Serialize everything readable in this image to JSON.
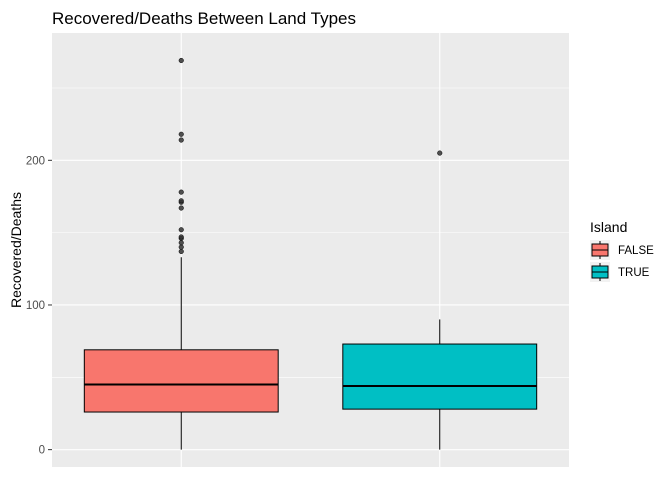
{
  "chart_data": {
    "type": "box",
    "title": "Recovered/Deaths Between Land Types",
    "xlabel": "",
    "ylabel": "Recovered/Deaths",
    "ylim": [
      -12,
      288
    ],
    "yticks": [
      0,
      100,
      200
    ],
    "grid": true,
    "legend": {
      "title": "Island",
      "position": "right"
    },
    "series": [
      {
        "name": "FALSE",
        "color": "#F8766D",
        "min": 0,
        "q1": 26,
        "median": 45,
        "q3": 69,
        "max": 133,
        "outliers": [
          137,
          140,
          143,
          146,
          147,
          152,
          167,
          171,
          172,
          178,
          214,
          218,
          269
        ]
      },
      {
        "name": "TRUE",
        "color": "#00BFC4",
        "min": 0,
        "q1": 28,
        "median": 44,
        "q3": 73,
        "max": 90,
        "outliers": [
          205
        ]
      }
    ],
    "colors": {
      "panel_background": "#EBEBEB",
      "grid_major": "#FFFFFF",
      "box_outline": "#000000",
      "outlier": "#333333"
    }
  }
}
